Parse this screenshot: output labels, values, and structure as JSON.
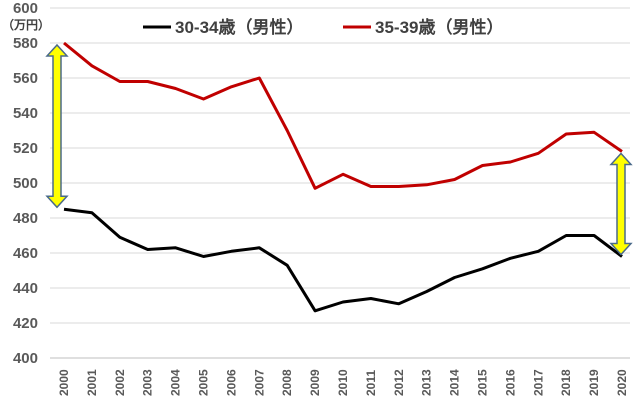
{
  "chart_data": {
    "type": "line",
    "unit_label": "（万円）",
    "x": [
      "2000",
      "2001",
      "2002",
      "2003",
      "2004",
      "2005",
      "2006",
      "2007",
      "2008",
      "2009",
      "2010",
      "2011",
      "2012",
      "2013",
      "2014",
      "2015",
      "2016",
      "2017",
      "2018",
      "2019",
      "2020"
    ],
    "ylim": [
      400,
      600
    ],
    "yticks": [
      400,
      420,
      440,
      460,
      480,
      500,
      520,
      540,
      560,
      580,
      600
    ],
    "grid": true,
    "legend_position": "top",
    "series": [
      {
        "name": "30-34歳（男性）",
        "color": "#000000",
        "values": [
          485,
          483,
          469,
          462,
          463,
          458,
          461,
          463,
          453,
          427,
          432,
          434,
          431,
          438,
          446,
          451,
          457,
          461,
          470,
          470,
          458
        ]
      },
      {
        "name": "35-39歳（男性）",
        "color": "#c00000",
        "values": [
          580,
          567,
          558,
          558,
          554,
          548,
          555,
          560,
          530,
          497,
          505,
          498,
          498,
          499,
          502,
          510,
          512,
          517,
          528,
          529,
          518
        ]
      }
    ],
    "annotations": [
      {
        "type": "double-arrow",
        "x": "2000",
        "from": 580,
        "to": 485,
        "fill": "#ffff00",
        "stroke": "#4a6a8a"
      },
      {
        "type": "double-arrow",
        "x": "2020",
        "from": 518,
        "to": 458,
        "fill": "#ffff00",
        "stroke": "#4a6a8a"
      }
    ]
  }
}
